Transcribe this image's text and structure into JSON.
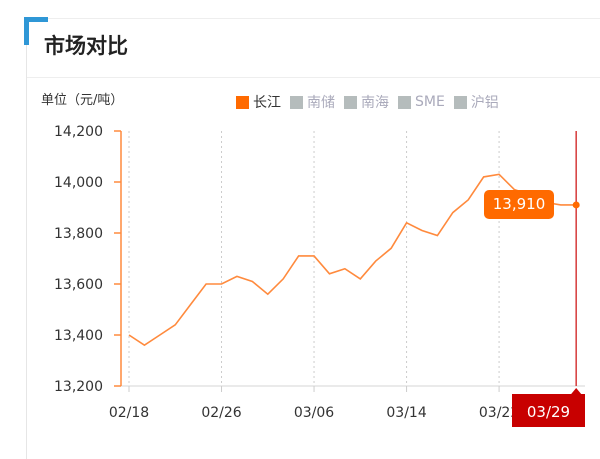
{
  "title": "市场对比",
  "unit_label": "单位（元/吨）",
  "legend": [
    {
      "label": "长江",
      "active": true
    },
    {
      "label": "南储",
      "active": false
    },
    {
      "label": "南海",
      "active": false
    },
    {
      "label": "SME",
      "active": false
    },
    {
      "label": "沪铝",
      "active": false
    }
  ],
  "colors": {
    "series": "#ff8a3d",
    "accent": "#2f97d6",
    "marker": "#c80000",
    "tooltip": "#ff6a00"
  },
  "tooltip": {
    "value": "13,910",
    "date": "03/29"
  },
  "chart_data": {
    "type": "line",
    "ylim": [
      13200,
      14200
    ],
    "yticks": [
      "13,200",
      "13,400",
      "13,600",
      "13,800",
      "14,000",
      "14,200"
    ],
    "ytick_values": [
      13200,
      13400,
      13600,
      13800,
      14000,
      14200
    ],
    "xticks": [
      "02/18",
      "02/26",
      "03/06",
      "03/14",
      "03/22"
    ],
    "x": [
      "02/18",
      "02/19",
      "02/20",
      "02/21",
      "02/22",
      "02/25",
      "02/26",
      "02/27",
      "02/28",
      "03/01",
      "03/04",
      "03/05",
      "03/06",
      "03/07",
      "03/08",
      "03/11",
      "03/12",
      "03/13",
      "03/14",
      "03/15",
      "03/18",
      "03/19",
      "03/20",
      "03/21",
      "03/22",
      "03/25",
      "03/26",
      "03/27",
      "03/28",
      "03/29"
    ],
    "series": [
      {
        "name": "长江",
        "values": [
          13400,
          13360,
          13400,
          13440,
          13520,
          13600,
          13600,
          13630,
          13610,
          13560,
          13620,
          13710,
          13710,
          13640,
          13660,
          13620,
          13690,
          13740,
          13840,
          13810,
          13790,
          13880,
          13930,
          14020,
          14030,
          13970,
          13950,
          13920,
          13910,
          13910
        ]
      }
    ],
    "grid": "vertical-dotted",
    "legend_position": "top"
  }
}
